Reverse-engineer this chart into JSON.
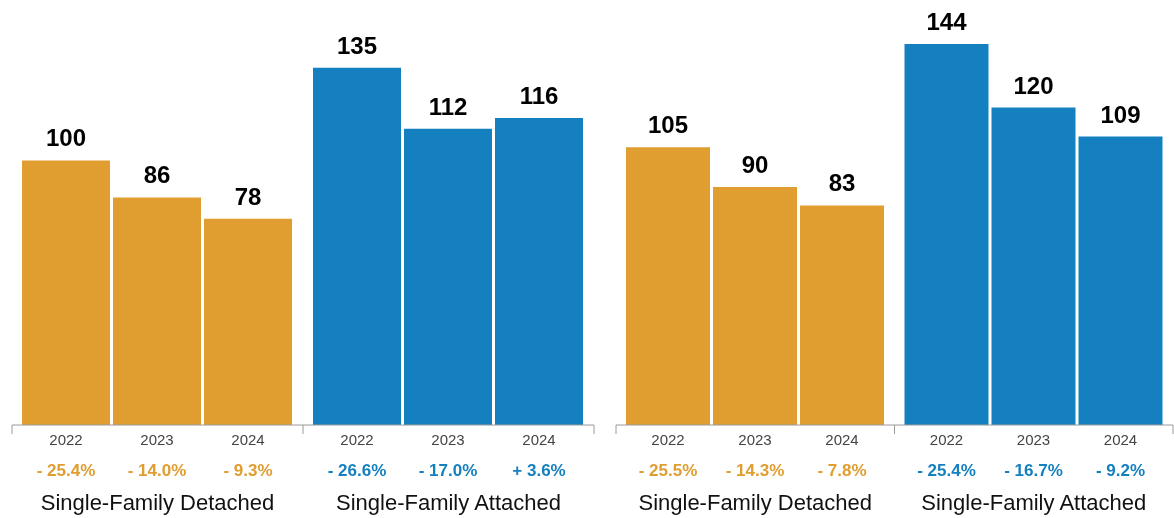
{
  "chart_data": [
    {
      "type": "bar",
      "categories": [
        "Single-Family Detached",
        "Single-Family Attached"
      ],
      "series": [
        {
          "name": "2022",
          "colors": [
            "#e09d30",
            "#1580c0"
          ],
          "values": [
            100,
            135
          ]
        },
        {
          "name": "2023",
          "colors": [
            "#e09d30",
            "#1580c0"
          ],
          "values": [
            86,
            112
          ]
        },
        {
          "name": "2024",
          "colors": [
            "#e09d30",
            "#1580c0"
          ],
          "values": [
            78,
            116
          ]
        }
      ],
      "data_labels": true,
      "annotations": [
        "- 25.4%",
        "- 14.0%",
        "- 9.3%",
        "- 26.6%",
        "- 17.0%",
        "+ 3.6%"
      ]
    },
    {
      "type": "bar",
      "categories": [
        "Single-Family Detached",
        "Single-Family Attached"
      ],
      "series": [
        {
          "name": "2022",
          "colors": [
            "#e09d30",
            "#1580c0"
          ],
          "values": [
            105,
            144
          ]
        },
        {
          "name": "2023",
          "colors": [
            "#e09d30",
            "#1580c0"
          ],
          "values": [
            90,
            120
          ]
        },
        {
          "name": "2024",
          "colors": [
            "#e09d30",
            "#1580c0"
          ],
          "values": [
            83,
            109
          ]
        }
      ],
      "data_labels": true,
      "annotations": [
        "- 25.5%",
        "- 14.3%",
        "- 7.8%",
        "- 25.4%",
        "- 16.7%",
        "- 9.2%"
      ]
    }
  ]
}
